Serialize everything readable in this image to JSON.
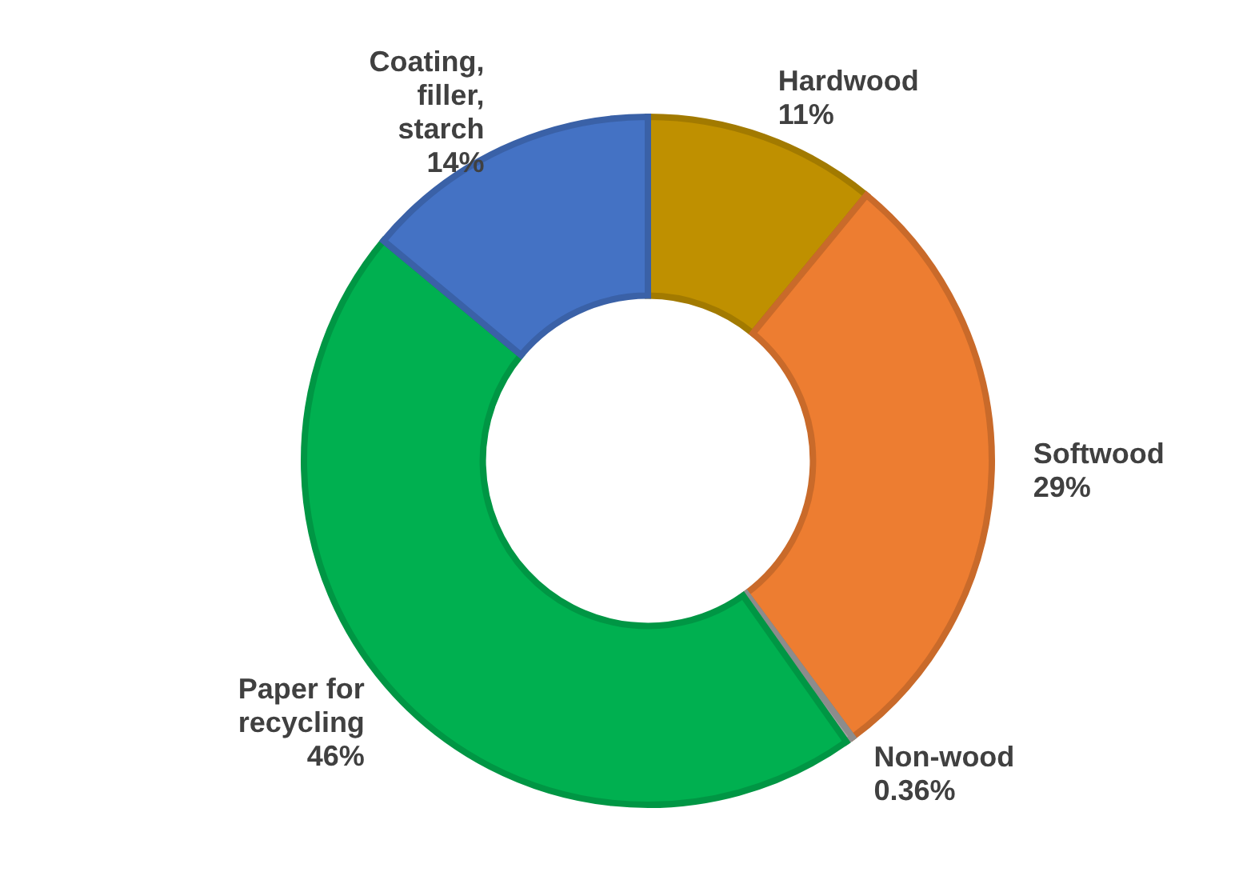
{
  "chart_data": {
    "type": "donut",
    "categories": [
      "Hardwood",
      "Softwood",
      "Non-wood",
      "Paper for recycling",
      "Coating, filler, starch"
    ],
    "values": [
      11,
      29,
      0.36,
      46,
      14
    ],
    "colors": [
      "#bf9000",
      "#ed7d31",
      "#a5a5a5",
      "#00b050",
      "#4472c4"
    ],
    "value_labels": [
      "11%",
      "29%",
      "0.36%",
      "46%",
      "14%"
    ]
  }
}
